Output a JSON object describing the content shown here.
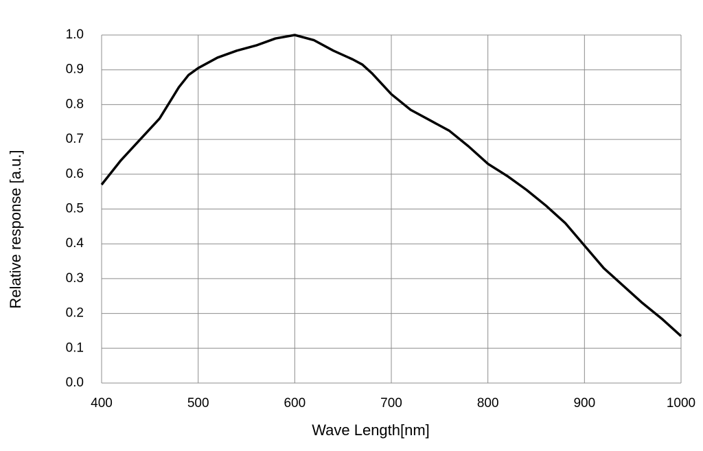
{
  "chart_data": {
    "type": "line",
    "x_label": "Wave Length[nm]",
    "y_label": "Relative response [a.u.]",
    "x": [
      400,
      420,
      440,
      460,
      480,
      490,
      500,
      520,
      540,
      560,
      580,
      600,
      620,
      640,
      660,
      670,
      680,
      700,
      720,
      740,
      760,
      780,
      800,
      820,
      840,
      860,
      880,
      900,
      920,
      940,
      960,
      980,
      1000
    ],
    "series": [
      {
        "color": "#000000",
        "values": [
          0.57,
          0.64,
          0.7,
          0.76,
          0.85,
          0.885,
          0.905,
          0.935,
          0.955,
          0.97,
          0.99,
          1.0,
          0.985,
          0.955,
          0.93,
          0.915,
          0.89,
          0.83,
          0.785,
          0.755,
          0.725,
          0.68,
          0.63,
          0.595,
          0.555,
          0.51,
          0.46,
          0.395,
          0.33,
          0.28,
          0.23,
          0.185,
          0.135
        ]
      }
    ],
    "xlim": [
      400,
      1000
    ],
    "xticks": [
      400,
      500,
      600,
      700,
      800,
      900,
      1000
    ],
    "ylim": [
      0,
      1
    ],
    "yticks": [
      {
        "value": 0,
        "label": "0.0"
      },
      0.1,
      0.2,
      0.3,
      0.4,
      0.5,
      0.6,
      0.7,
      0.8,
      0.9,
      {
        "value": 1,
        "label": "1.0"
      }
    ],
    "grid": true
  }
}
